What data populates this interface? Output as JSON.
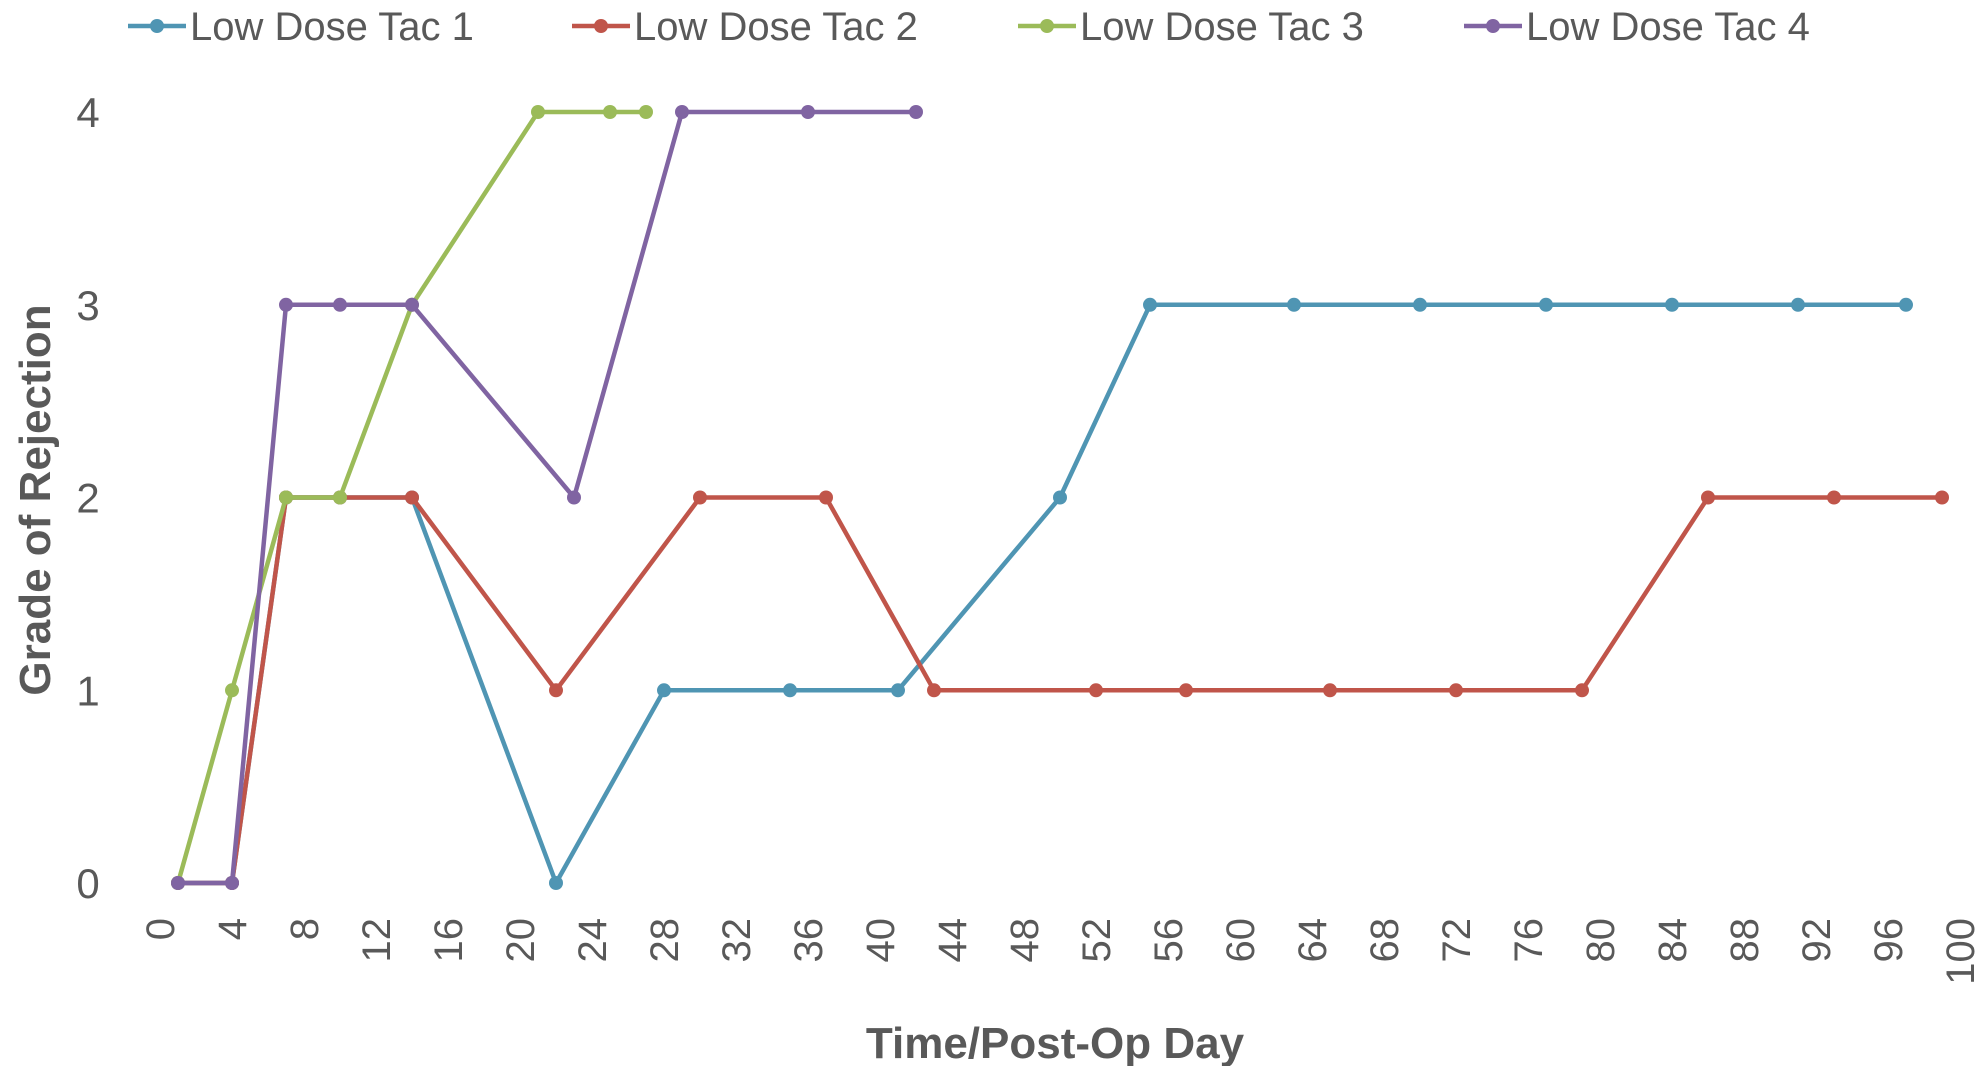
{
  "chart_data": {
    "type": "line",
    "title": "",
    "xlabel": "Time/Post-Op Day",
    "ylabel": "Grade of Rejection",
    "xlim": [
      0,
      100
    ],
    "ylim": [
      0,
      4
    ],
    "x_ticks": [
      0,
      4,
      8,
      12,
      16,
      20,
      24,
      28,
      32,
      36,
      40,
      44,
      48,
      52,
      56,
      60,
      64,
      68,
      72,
      76,
      80,
      84,
      88,
      92,
      96,
      100
    ],
    "y_ticks": [
      0,
      1,
      2,
      3,
      4
    ],
    "grid": false,
    "legend_position": "top",
    "series": [
      {
        "name": "Low Dose Tac 1",
        "color": "#4f95b3",
        "points": [
          [
            1,
            0
          ],
          [
            4,
            0
          ],
          [
            7,
            2
          ],
          [
            10,
            2
          ],
          [
            14,
            2
          ],
          [
            22,
            0
          ],
          [
            28,
            1
          ],
          [
            35,
            1
          ],
          [
            41,
            1
          ],
          [
            50,
            2
          ],
          [
            55,
            3
          ],
          [
            63,
            3
          ],
          [
            70,
            3
          ],
          [
            77,
            3
          ],
          [
            84,
            3
          ],
          [
            91,
            3
          ],
          [
            97,
            3
          ]
        ]
      },
      {
        "name": "Low Dose Tac 2",
        "color": "#c0554a",
        "points": [
          [
            1,
            0
          ],
          [
            4,
            0
          ],
          [
            7,
            2
          ],
          [
            10,
            2
          ],
          [
            14,
            2
          ],
          [
            22,
            1
          ],
          [
            30,
            2
          ],
          [
            37,
            2
          ],
          [
            43,
            1
          ],
          [
            52,
            1
          ],
          [
            57,
            1
          ],
          [
            65,
            1
          ],
          [
            72,
            1
          ],
          [
            79,
            1
          ],
          [
            86,
            2
          ],
          [
            93,
            2
          ],
          [
            99,
            2
          ]
        ]
      },
      {
        "name": "Low Dose Tac 3",
        "color": "#9bbb59",
        "points": [
          [
            1,
            0
          ],
          [
            4,
            1
          ],
          [
            7,
            2
          ],
          [
            10,
            2
          ],
          [
            14,
            3
          ],
          [
            21,
            4
          ],
          [
            25,
            4
          ],
          [
            27,
            4
          ]
        ]
      },
      {
        "name": "Low Dose Tac 4",
        "color": "#8064a2",
        "points": [
          [
            1,
            0
          ],
          [
            4,
            0
          ],
          [
            7,
            3
          ],
          [
            10,
            3
          ],
          [
            14,
            3
          ],
          [
            23,
            2
          ],
          [
            29,
            4
          ],
          [
            36,
            4
          ],
          [
            42,
            4
          ]
        ]
      }
    ]
  }
}
